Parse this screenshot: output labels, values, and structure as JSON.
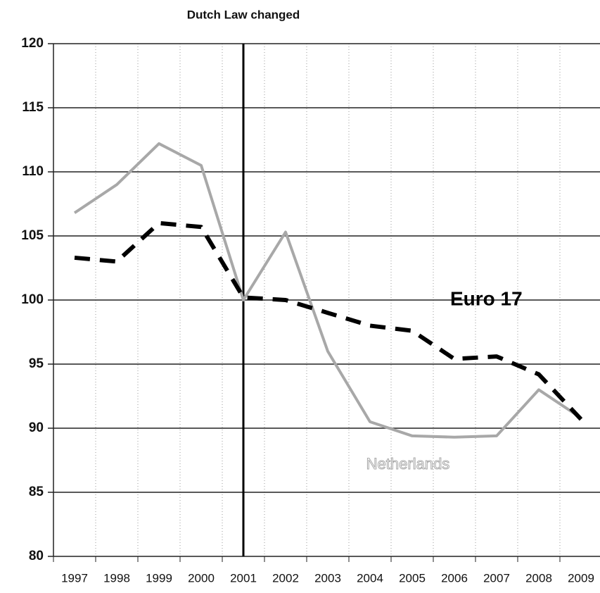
{
  "chart_data": {
    "type": "line",
    "categories": [
      "1997",
      "1998",
      "1999",
      "2000",
      "2001",
      "2002",
      "2003",
      "2004",
      "2005",
      "2006",
      "2007",
      "2008",
      "2009"
    ],
    "series": [
      {
        "name": "Netherlands",
        "color": "#a8a8a8",
        "dash": false,
        "values": [
          106.8,
          109,
          112.2,
          110.5,
          100,
          105.3,
          96,
          90.5,
          89.4,
          89.3,
          89.4,
          93,
          90.8
        ]
      },
      {
        "name": "Euro 17",
        "color": "#000000",
        "dash": true,
        "values": [
          103.3,
          103,
          106,
          105.7,
          100.2,
          100,
          99,
          98,
          97.6,
          95.4,
          95.6,
          94.2,
          90.7
        ]
      }
    ],
    "ylim": [
      80,
      120
    ],
    "yticks": [
      80,
      85,
      90,
      95,
      100,
      105,
      110,
      115,
      120
    ],
    "grid": true,
    "vline": {
      "x": "2001",
      "label": "Dutch Law changed"
    }
  }
}
